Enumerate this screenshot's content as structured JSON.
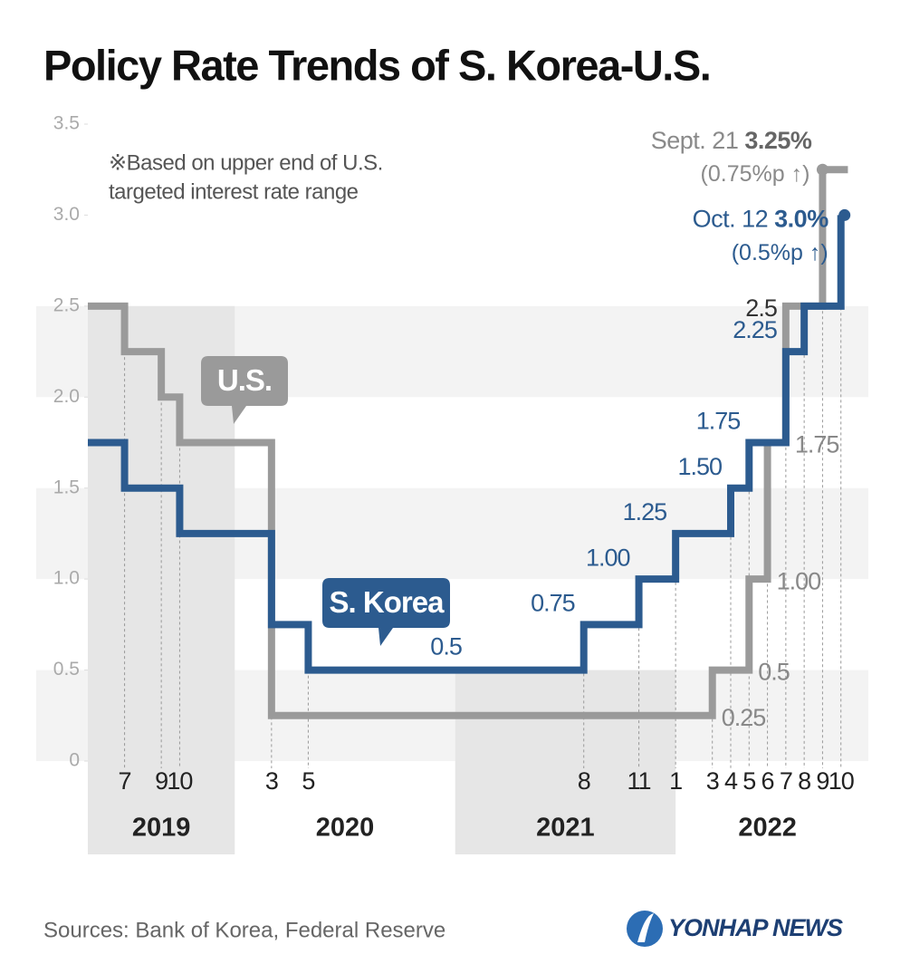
{
  "chart_data": {
    "type": "step",
    "title": "Policy Rate Trends of S. Korea-U.S.",
    "note": [
      "※Based on upper end of U.S.",
      "targeted interest rate range"
    ],
    "source": "Sources: Bank of Korea, Federal Reserve",
    "logo": "YONHAP NEWS",
    "ylim": [
      0,
      3.5
    ],
    "yticks": [
      0,
      0.5,
      {
        "value": 1,
        "label": "1.0"
      },
      1.5,
      {
        "value": 2,
        "label": "2.0"
      },
      2.5,
      {
        "value": 3,
        "label": "3.0"
      },
      3.5
    ],
    "xlim": [
      "2019-05",
      "2022-11"
    ],
    "xticks": [
      {
        "value": "2019-07",
        "label": "7"
      },
      {
        "value": "2019-09",
        "label": "9"
      },
      {
        "value": "2019-10",
        "label": "10"
      },
      {
        "value": "2020-03",
        "label": "3"
      },
      {
        "value": "2020-05",
        "label": "5"
      },
      {
        "value": "2021-08",
        "label": "8"
      },
      {
        "value": "2021-11",
        "label": "11"
      },
      {
        "value": "2022-01",
        "label": "1"
      },
      {
        "value": "2022-03",
        "label": "3"
      },
      {
        "value": "2022-04",
        "label": "4"
      },
      {
        "value": "2022-05",
        "label": "5"
      },
      {
        "value": "2022-06",
        "label": "6"
      },
      {
        "value": "2022-07",
        "label": "7"
      },
      {
        "value": "2022-08",
        "label": "8"
      },
      {
        "value": "2022-09",
        "label": "9"
      },
      {
        "value": "2022-10",
        "label": "10"
      }
    ],
    "years": [
      "2019",
      "2020",
      "2021",
      "2022"
    ],
    "series": [
      {
        "name": "S. Korea",
        "color": "#2c5b8f",
        "x": [
          "2019-05",
          "2019-07",
          "2019-10",
          "2020-03",
          "2020-05",
          "2021-08",
          "2021-11",
          "2022-01",
          "2022-04",
          "2022-05",
          "2022-07",
          "2022-08",
          "2022-10"
        ],
        "values": [
          1.75,
          1.5,
          1.25,
          0.75,
          0.5,
          0.75,
          1.0,
          1.25,
          1.5,
          1.75,
          2.25,
          2.5,
          3.0
        ],
        "value_labels": [
          null,
          null,
          null,
          null,
          "0.5",
          "0.75",
          "1.00",
          "1.25",
          "1.50",
          "1.75",
          "2.25",
          null,
          "3.0%"
        ],
        "callout": {
          "date": "Oct. 12",
          "change": "(0.5%p ↑)"
        }
      },
      {
        "name": "U.S.",
        "color": "#9a9a9a",
        "x": [
          "2019-05",
          "2019-07",
          "2019-09",
          "2019-10",
          "2020-03",
          "2022-03",
          "2022-05",
          "2022-06",
          "2022-07",
          "2022-09"
        ],
        "values": [
          2.5,
          2.25,
          2.0,
          1.75,
          0.25,
          0.5,
          1.0,
          1.75,
          2.5,
          3.25
        ],
        "value_labels": [
          null,
          null,
          null,
          null,
          "0.25",
          "0.5",
          "1.00",
          "1.75",
          "2.5",
          "3.25%"
        ],
        "callout": {
          "date": "Sept. 21",
          "change": "(0.75%p ↑)"
        }
      }
    ]
  }
}
